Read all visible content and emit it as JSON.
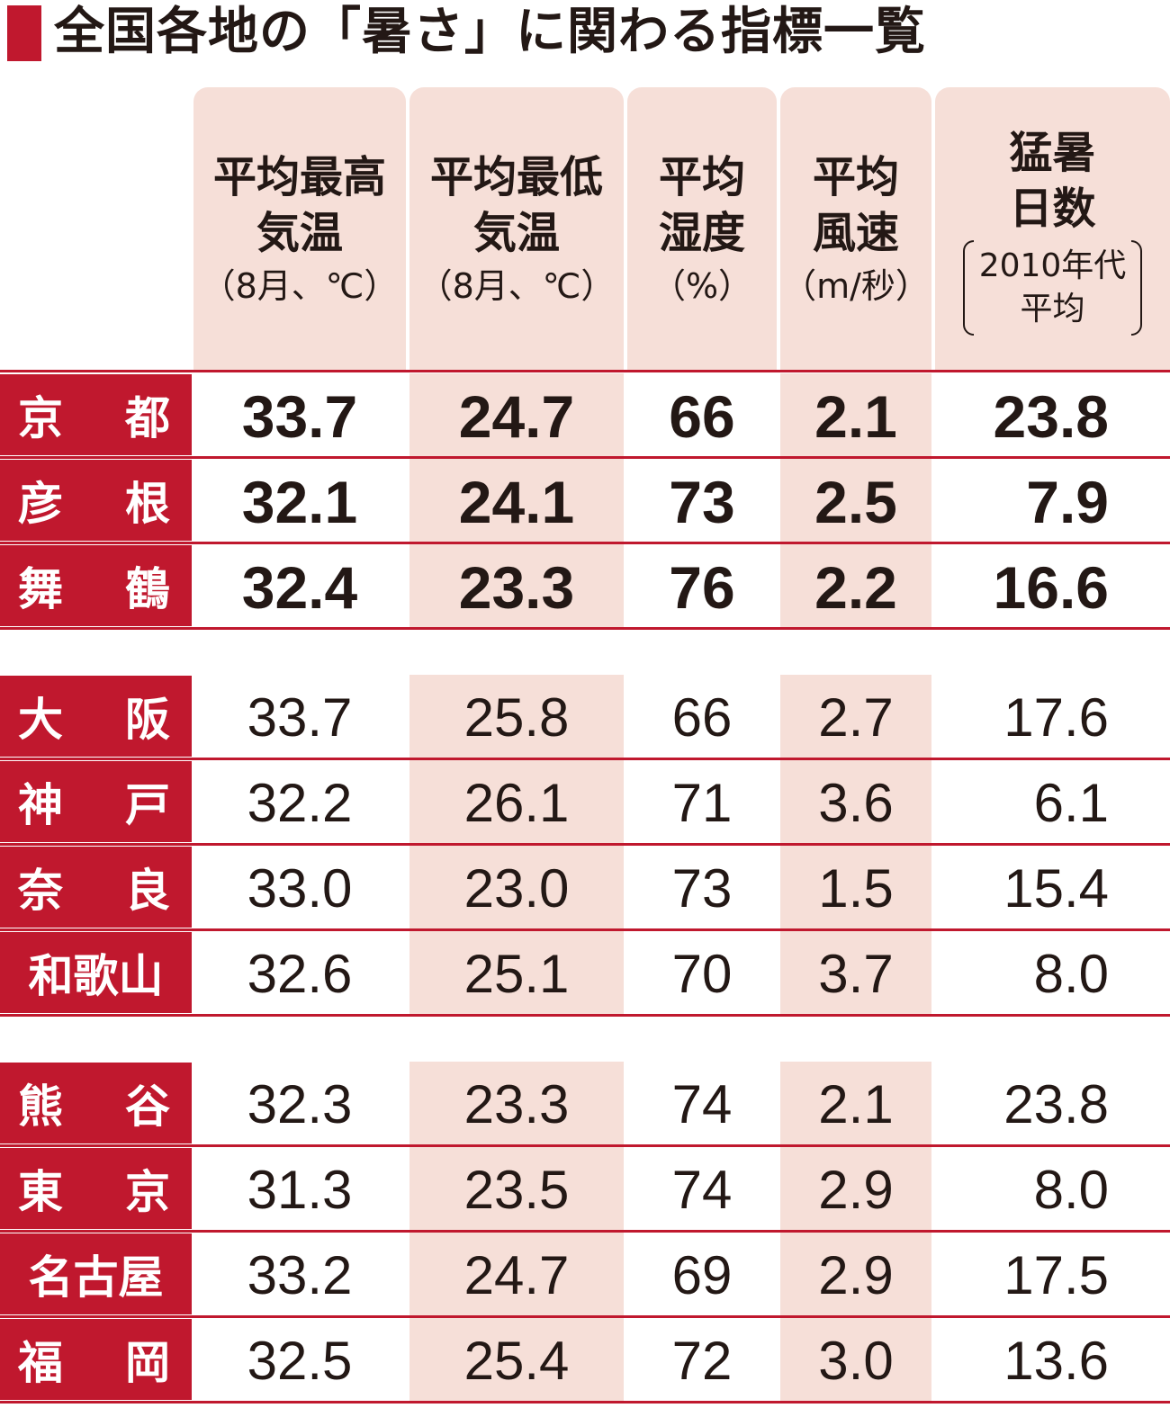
{
  "title": "全国各地の「暑さ」に関わる指標一覧",
  "colors": {
    "accent": "#c0182e",
    "band": "#f6dfd8",
    "text": "#231815"
  },
  "headers": [
    {
      "lines": [
        "平均最高",
        "気温"
      ],
      "unit": "（8月、℃）"
    },
    {
      "lines": [
        "平均最低",
        "気温"
      ],
      "unit": "（8月、℃）"
    },
    {
      "lines": [
        "平均",
        "湿度"
      ],
      "unit": "（%）"
    },
    {
      "lines": [
        "平均",
        "風速"
      ],
      "unit": "（m/秒）"
    },
    {
      "lines": [
        "猛暑",
        "日数"
      ],
      "paren": [
        "2010年代",
        "平均"
      ]
    }
  ],
  "groups": [
    {
      "highlight": true,
      "rows": [
        {
          "city": [
            "京",
            "都"
          ],
          "values": [
            "33.7",
            "24.7",
            "66",
            "2.1",
            "23.8"
          ]
        },
        {
          "city": [
            "彦",
            "根"
          ],
          "values": [
            "32.1",
            "24.1",
            "73",
            "2.5",
            "7.9"
          ]
        },
        {
          "city": [
            "舞",
            "鶴"
          ],
          "values": [
            "32.4",
            "23.3",
            "76",
            "2.2",
            "16.6"
          ]
        }
      ]
    },
    {
      "highlight": false,
      "rows": [
        {
          "city": [
            "大",
            "阪"
          ],
          "values": [
            "33.7",
            "25.8",
            "66",
            "2.7",
            "17.6"
          ]
        },
        {
          "city": [
            "神",
            "戸"
          ],
          "values": [
            "32.2",
            "26.1",
            "71",
            "3.6",
            "6.1"
          ]
        },
        {
          "city": [
            "奈",
            "良"
          ],
          "values": [
            "33.0",
            "23.0",
            "73",
            "1.5",
            "15.4"
          ]
        },
        {
          "city": [
            "和歌山"
          ],
          "values": [
            "32.6",
            "25.1",
            "70",
            "3.7",
            "8.0"
          ]
        }
      ]
    },
    {
      "highlight": false,
      "rows": [
        {
          "city": [
            "熊",
            "谷"
          ],
          "values": [
            "32.3",
            "23.3",
            "74",
            "2.1",
            "23.8"
          ]
        },
        {
          "city": [
            "東",
            "京"
          ],
          "values": [
            "31.3",
            "23.5",
            "74",
            "2.9",
            "8.0"
          ]
        },
        {
          "city": [
            "名古屋"
          ],
          "values": [
            "33.2",
            "24.7",
            "69",
            "2.9",
            "17.5"
          ]
        },
        {
          "city": [
            "福",
            "岡"
          ],
          "values": [
            "32.5",
            "25.4",
            "72",
            "3.0",
            "13.6"
          ]
        }
      ]
    }
  ]
}
